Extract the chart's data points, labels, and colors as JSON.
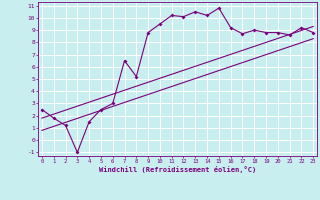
{
  "xlabel": "Windchill (Refroidissement éolien,°C)",
  "bg_color": "#c8eef0",
  "line_color": "#7b007b",
  "grid_color": "#ffffff",
  "data_line": {
    "x": [
      0,
      1,
      2,
      3,
      4,
      5,
      6,
      7,
      8,
      9,
      10,
      11,
      12,
      13,
      14,
      15,
      16,
      17,
      18,
      19,
      20,
      21,
      22,
      23
    ],
    "y": [
      2.5,
      1.8,
      1.2,
      -1.0,
      1.5,
      2.5,
      3.0,
      6.5,
      5.2,
      8.8,
      9.5,
      10.2,
      10.1,
      10.5,
      10.2,
      10.8,
      9.2,
      8.7,
      9.0,
      8.8,
      8.8,
      8.6,
      9.2,
      8.8
    ]
  },
  "line1": {
    "x": [
      0,
      23
    ],
    "y": [
      0.8,
      8.3
    ]
  },
  "line2": {
    "x": [
      0,
      23
    ],
    "y": [
      1.8,
      9.3
    ]
  },
  "xlim": [
    0,
    23
  ],
  "ylim": [
    -1,
    11
  ],
  "xticks": [
    0,
    1,
    2,
    3,
    4,
    5,
    6,
    7,
    8,
    9,
    10,
    11,
    12,
    13,
    14,
    15,
    16,
    17,
    18,
    19,
    20,
    21,
    22,
    23
  ],
  "yticks": [
    -1,
    0,
    1,
    2,
    3,
    4,
    5,
    6,
    7,
    8,
    9,
    10,
    11
  ]
}
